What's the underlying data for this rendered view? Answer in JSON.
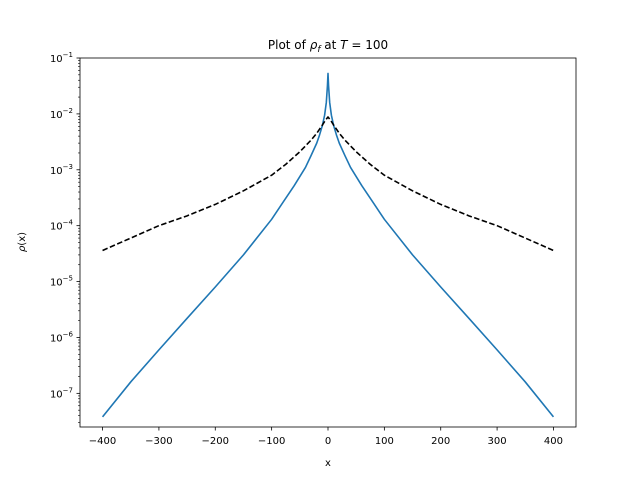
{
  "chart_data": {
    "type": "line",
    "title_main": "Plot of ",
    "title_symbol": "ρ",
    "title_subscript": "f",
    "title_mid": " at ",
    "title_var": "T",
    "title_tail": " = 100",
    "xlabel": "x",
    "ylabel_symbol": "ρ",
    "ylabel_arg": "(x)",
    "xlim": [
      -440,
      440
    ],
    "ylim": [
      2.5e-08,
      0.1
    ],
    "yscale": "log",
    "xticks": [
      -400,
      -300,
      -200,
      -100,
      0,
      100,
      200,
      300,
      400
    ],
    "xtick_labels": [
      "−400",
      "−300",
      "−200",
      "−100",
      "0",
      "100",
      "200",
      "300",
      "400"
    ],
    "yticks": [
      1e-07,
      1e-06,
      1e-05,
      0.0001,
      0.001,
      0.01,
      0.1
    ],
    "ytick_base": "10",
    "ytick_exponents": [
      "−7",
      "−6",
      "−5",
      "−4",
      "−3",
      "−2",
      "−1"
    ],
    "grid": false,
    "series": [
      {
        "style": "solid",
        "color": "#1f77b4",
        "x": [
          -400,
          -350,
          -300,
          -250,
          -200,
          -150,
          -100,
          -80,
          -60,
          -40,
          -30,
          -20,
          -15,
          -10,
          -6,
          -3,
          -1,
          0,
          1,
          3,
          6,
          10,
          15,
          20,
          30,
          40,
          60,
          80,
          100,
          150,
          200,
          250,
          300,
          350,
          400
        ],
        "y": [
          3.8e-08,
          1.6e-07,
          6e-07,
          2.2e-06,
          8e-06,
          3e-05,
          0.00013,
          0.00026,
          0.00052,
          0.0011,
          0.0018,
          0.003,
          0.0042,
          0.0062,
          0.0095,
          0.016,
          0.032,
          0.053,
          0.032,
          0.016,
          0.0095,
          0.0062,
          0.0042,
          0.003,
          0.0018,
          0.0011,
          0.00052,
          0.00026,
          0.00013,
          3e-05,
          8e-06,
          2.2e-06,
          6e-07,
          1.6e-07,
          3.8e-08
        ]
      },
      {
        "style": "dashed",
        "color": "#000000",
        "x": [
          -400,
          -350,
          -300,
          -250,
          -200,
          -150,
          -100,
          -75,
          -50,
          -30,
          -20,
          -10,
          -5,
          0,
          5,
          10,
          20,
          30,
          50,
          75,
          100,
          150,
          200,
          250,
          300,
          350,
          400
        ],
        "y": [
          3.6e-05,
          6e-05,
          0.0001,
          0.00015,
          0.00024,
          0.00042,
          0.0008,
          0.00125,
          0.0021,
          0.0034,
          0.0045,
          0.0063,
          0.0076,
          0.0088,
          0.0076,
          0.0063,
          0.0045,
          0.0034,
          0.0021,
          0.00125,
          0.0008,
          0.00042,
          0.00024,
          0.00015,
          0.0001,
          6e-05,
          3.6e-05
        ]
      }
    ]
  }
}
